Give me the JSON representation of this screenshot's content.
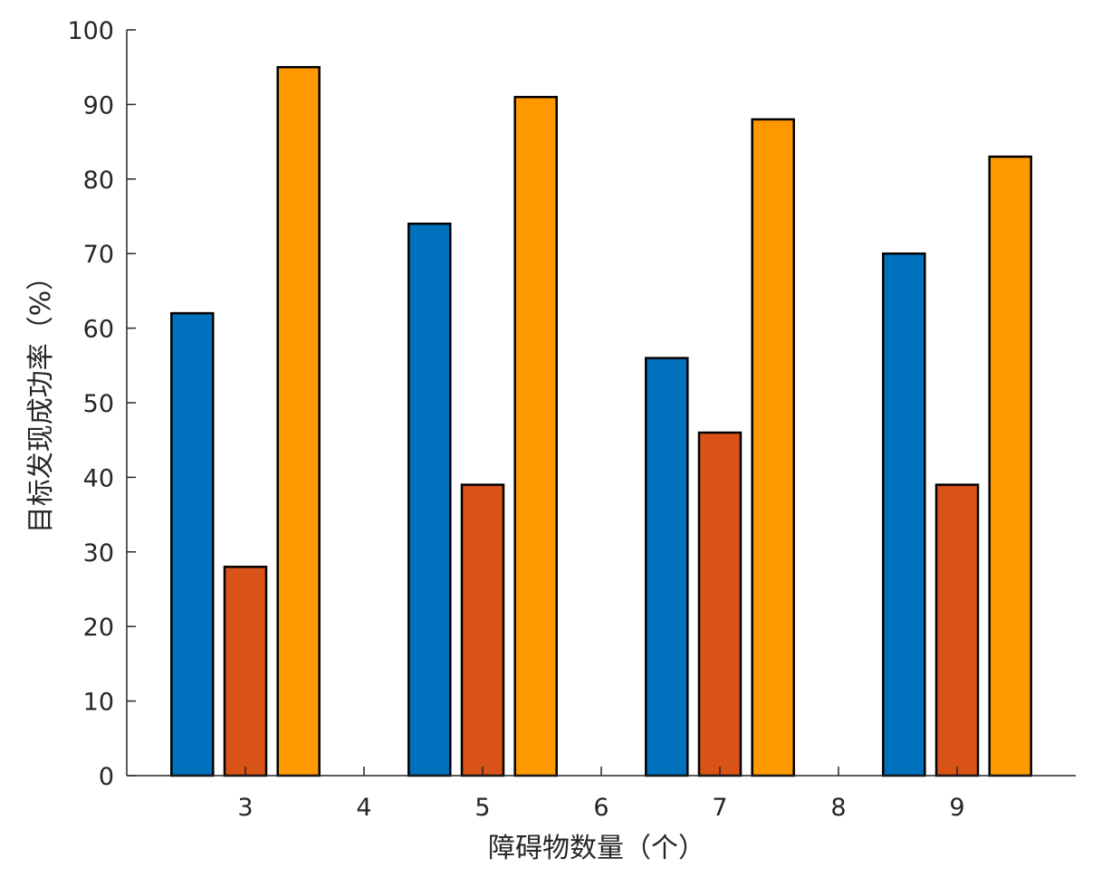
{
  "chart_data": {
    "type": "bar",
    "title": "",
    "xlabel": "障碍物数量（个）",
    "ylabel": "目标发现成功率（%）",
    "categories": [
      "3",
      "5",
      "7",
      "9"
    ],
    "xlim": [
      2,
      10
    ],
    "x_ticks": [
      "3",
      "4",
      "5",
      "6",
      "7",
      "8",
      "9"
    ],
    "ylim": [
      0,
      100
    ],
    "y_ticks": [
      "0",
      "10",
      "20",
      "30",
      "40",
      "50",
      "60",
      "70",
      "80",
      "90",
      "100"
    ],
    "grid": false,
    "legend": "none",
    "series": [
      {
        "color": "#0072BD",
        "values": [
          62,
          74,
          56,
          70
        ]
      },
      {
        "color": "#D95319",
        "values": [
          28,
          39,
          46,
          39
        ]
      },
      {
        "color": "#FF9900",
        "values": [
          95,
          91,
          88,
          83
        ]
      }
    ]
  }
}
